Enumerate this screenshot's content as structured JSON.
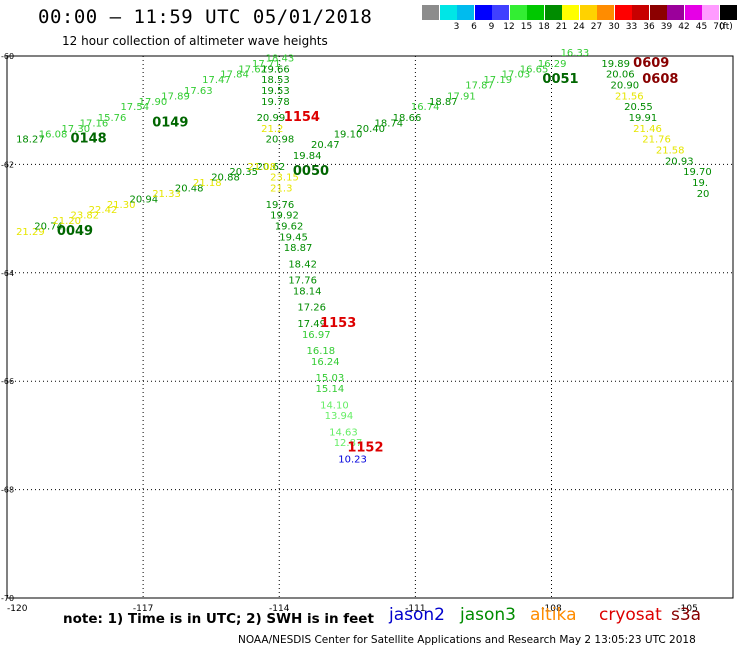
{
  "title": "00:00 – 11:59 UTC 05/01/2018",
  "subtitle": "12 hour collection of altimeter wave heights",
  "colorbar": {
    "unit_label": "(ft)",
    "levels": [
      {
        "label": "",
        "color": "#8c8c8c"
      },
      {
        "label": "3",
        "color": "#00e6e6"
      },
      {
        "label": "6",
        "color": "#00bbee"
      },
      {
        "label": "9",
        "color": "#0000ff"
      },
      {
        "label": "12",
        "color": "#4040ff"
      },
      {
        "label": "15",
        "color": "#33ee33"
      },
      {
        "label": "18",
        "color": "#00c800"
      },
      {
        "label": "21",
        "color": "#008c00"
      },
      {
        "label": "24",
        "color": "#ffff00"
      },
      {
        "label": "27",
        "color": "#ffd200"
      },
      {
        "label": "30",
        "color": "#ff8c00"
      },
      {
        "label": "33",
        "color": "#ff0000"
      },
      {
        "label": "36",
        "color": "#c80000"
      },
      {
        "label": "39",
        "color": "#8c0000"
      },
      {
        "label": "42",
        "color": "#9b009b"
      },
      {
        "label": "45",
        "color": "#e600e6"
      },
      {
        "label": "70",
        "color": "#ff9bff"
      },
      {
        "label": "",
        "color": "#000000"
      }
    ]
  },
  "map": {
    "lon_range": [
      -120,
      -104
    ],
    "lat_range": [
      -70,
      -60
    ],
    "lon_ticks": [
      "-120",
      "-117",
      "-114",
      "-111",
      "-108",
      "-105"
    ],
    "lat_ticks": [
      "-60",
      "-62",
      "-64",
      "-66",
      "-68",
      "-70"
    ]
  },
  "track_labels": [
    {
      "text": "0148",
      "lon": -118.6,
      "lat": -61.6,
      "color": "#006600",
      "bold": true
    },
    {
      "text": "0149",
      "lon": -116.8,
      "lat": -61.3,
      "color": "#006600",
      "bold": true
    },
    {
      "text": "0049",
      "lon": -118.9,
      "lat": -63.3,
      "color": "#006600",
      "bold": true
    },
    {
      "text": "0050",
      "lon": -113.7,
      "lat": -62.2,
      "color": "#006600",
      "bold": true
    },
    {
      "text": "0051",
      "lon": -108.2,
      "lat": -60.5,
      "color": "#006600",
      "bold": true
    },
    {
      "text": "0609",
      "lon": -106.2,
      "lat": -60.2,
      "color": "#880000",
      "bold": true
    },
    {
      "text": "0608",
      "lon": -106.0,
      "lat": -60.5,
      "color": "#880000",
      "bold": true
    },
    {
      "text": "1154",
      "lon": -113.9,
      "lat": -61.2,
      "color": "#dd0000",
      "bold": true
    },
    {
      "text": "1153",
      "lon": -113.1,
      "lat": -65.0,
      "color": "#dd0000",
      "bold": true
    },
    {
      "text": "1152",
      "lon": -112.5,
      "lat": -67.3,
      "color": "#dd0000",
      "bold": true
    }
  ],
  "swh_values": [
    {
      "text": "18.27",
      "lon": -119.8,
      "lat": -61.6,
      "color": "#008c00"
    },
    {
      "text": "16.08",
      "lon": -119.3,
      "lat": -61.5,
      "color": "#33cc33"
    },
    {
      "text": "17.30",
      "lon": -118.8,
      "lat": -61.4,
      "color": "#33cc33"
    },
    {
      "text": "17.16",
      "lon": -118.4,
      "lat": -61.3,
      "color": "#33cc33"
    },
    {
      "text": "15.76",
      "lon": -118.0,
      "lat": -61.2,
      "color": "#33cc33"
    },
    {
      "text": "17.54",
      "lon": -117.5,
      "lat": -61.0,
      "color": "#33cc33"
    },
    {
      "text": "17.90",
      "lon": -117.1,
      "lat": -60.9,
      "color": "#33cc33"
    },
    {
      "text": "17.89",
      "lon": -116.6,
      "lat": -60.8,
      "color": "#33cc33"
    },
    {
      "text": "17.63",
      "lon": -116.1,
      "lat": -60.7,
      "color": "#33cc33"
    },
    {
      "text": "17.47",
      "lon": -115.7,
      "lat": -60.5,
      "color": "#33cc33"
    },
    {
      "text": "17.84",
      "lon": -115.3,
      "lat": -60.4,
      "color": "#33cc33"
    },
    {
      "text": "17.62",
      "lon": -114.9,
      "lat": -60.3,
      "color": "#33cc33"
    },
    {
      "text": "17.71",
      "lon": -114.6,
      "lat": -60.2,
      "color": "#33cc33"
    },
    {
      "text": "18.43",
      "lon": -114.3,
      "lat": -60.1,
      "color": "#33cc33"
    },
    {
      "text": "19.66",
      "lon": -114.4,
      "lat": -60.3,
      "color": "#008c00"
    },
    {
      "text": "18.53",
      "lon": -114.4,
      "lat": -60.5,
      "color": "#008c00"
    },
    {
      "text": "19.53",
      "lon": -114.4,
      "lat": -60.7,
      "color": "#008c00"
    },
    {
      "text": "19.78",
      "lon": -114.4,
      "lat": -60.9,
      "color": "#008c00"
    },
    {
      "text": "20.99",
      "lon": -114.5,
      "lat": -61.2,
      "color": "#008c00"
    },
    {
      "text": "21.2",
      "lon": -114.4,
      "lat": -61.4,
      "color": "#e6e600"
    },
    {
      "text": "20.98",
      "lon": -114.3,
      "lat": -61.6,
      "color": "#008c00"
    },
    {
      "text": "20.62",
      "lon": -114.5,
      "lat": -62.1,
      "color": "#008c00"
    },
    {
      "text": "23.15",
      "lon": -114.2,
      "lat": -62.3,
      "color": "#e6e600"
    },
    {
      "text": "21.3",
      "lon": -114.2,
      "lat": -62.5,
      "color": "#e6e600"
    },
    {
      "text": "19.76",
      "lon": -114.3,
      "lat": -62.8,
      "color": "#008c00"
    },
    {
      "text": "19.92",
      "lon": -114.2,
      "lat": -63.0,
      "color": "#008c00"
    },
    {
      "text": "19.62",
      "lon": -114.1,
      "lat": -63.2,
      "color": "#008c00"
    },
    {
      "text": "19.45",
      "lon": -114.0,
      "lat": -63.4,
      "color": "#008c00"
    },
    {
      "text": "18.87",
      "lon": -113.9,
      "lat": -63.6,
      "color": "#008c00"
    },
    {
      "text": "18.42",
      "lon": -113.8,
      "lat": -63.9,
      "color": "#008c00"
    },
    {
      "text": "17.76",
      "lon": -113.8,
      "lat": -64.2,
      "color": "#008c00"
    },
    {
      "text": "18.14",
      "lon": -113.7,
      "lat": -64.4,
      "color": "#008c00"
    },
    {
      "text": "17.26",
      "lon": -113.6,
      "lat": -64.7,
      "color": "#008c00"
    },
    {
      "text": "17.49",
      "lon": -113.6,
      "lat": -65.0,
      "color": "#008c00"
    },
    {
      "text": "16.97",
      "lon": -113.5,
      "lat": -65.2,
      "color": "#33cc33"
    },
    {
      "text": "16.18",
      "lon": -113.4,
      "lat": -65.5,
      "color": "#33cc33"
    },
    {
      "text": "16.24",
      "lon": -113.3,
      "lat": -65.7,
      "color": "#33cc33"
    },
    {
      "text": "15.03",
      "lon": -113.2,
      "lat": -66.0,
      "color": "#33cc33"
    },
    {
      "text": "15.14",
      "lon": -113.2,
      "lat": -66.2,
      "color": "#33cc33"
    },
    {
      "text": "14.10",
      "lon": -113.1,
      "lat": -66.5,
      "color": "#66ee66"
    },
    {
      "text": "13.94",
      "lon": -113.0,
      "lat": -66.7,
      "color": "#66ee66"
    },
    {
      "text": "14.63",
      "lon": -112.9,
      "lat": -67.0,
      "color": "#66ee66"
    },
    {
      "text": "12.87",
      "lon": -112.8,
      "lat": -67.2,
      "color": "#66ee66"
    },
    {
      "text": "10.23",
      "lon": -112.7,
      "lat": -67.5,
      "color": "#0000dd"
    },
    {
      "text": "21.29",
      "lon": -119.8,
      "lat": -63.3,
      "color": "#e6e600"
    },
    {
      "text": "20.74",
      "lon": -119.4,
      "lat": -63.2,
      "color": "#008c00"
    },
    {
      "text": "21.20",
      "lon": -119.0,
      "lat": -63.1,
      "color": "#e6e600"
    },
    {
      "text": "23.82",
      "lon": -118.6,
      "lat": -63.0,
      "color": "#e6e600"
    },
    {
      "text": "22.42",
      "lon": -118.2,
      "lat": -62.9,
      "color": "#e6e600"
    },
    {
      "text": "21.30",
      "lon": -117.8,
      "lat": -62.8,
      "color": "#e6e600"
    },
    {
      "text": "20.94",
      "lon": -117.3,
      "lat": -62.7,
      "color": "#008c00"
    },
    {
      "text": "21.33",
      "lon": -116.8,
      "lat": -62.6,
      "color": "#e6e600"
    },
    {
      "text": "20.48",
      "lon": -116.3,
      "lat": -62.5,
      "color": "#008c00"
    },
    {
      "text": "21.18",
      "lon": -115.9,
      "lat": -62.4,
      "color": "#e6e600"
    },
    {
      "text": "20.88",
      "lon": -115.5,
      "lat": -62.3,
      "color": "#008c00"
    },
    {
      "text": "20.35",
      "lon": -115.1,
      "lat": -62.2,
      "color": "#008c00"
    },
    {
      "text": "21.08",
      "lon": -114.7,
      "lat": -62.1,
      "color": "#e6e600"
    },
    {
      "text": "19.84",
      "lon": -113.7,
      "lat": -61.9,
      "color": "#008c00"
    },
    {
      "text": "20.47",
      "lon": -113.3,
      "lat": -61.7,
      "color": "#008c00"
    },
    {
      "text": "19.10",
      "lon": -112.8,
      "lat": -61.5,
      "color": "#008c00"
    },
    {
      "text": "20.40",
      "lon": -112.3,
      "lat": -61.4,
      "color": "#008c00"
    },
    {
      "text": "18.74",
      "lon": -111.9,
      "lat": -61.3,
      "color": "#008c00"
    },
    {
      "text": "18.66",
      "lon": -111.5,
      "lat": -61.2,
      "color": "#008c00"
    },
    {
      "text": "16.74",
      "lon": -111.1,
      "lat": -61.0,
      "color": "#33cc33"
    },
    {
      "text": "18.87",
      "lon": -110.7,
      "lat": -60.9,
      "color": "#008c00"
    },
    {
      "text": "17.91",
      "lon": -110.3,
      "lat": -60.8,
      "color": "#33cc33"
    },
    {
      "text": "17.87",
      "lon": -109.9,
      "lat": -60.6,
      "color": "#33cc33"
    },
    {
      "text": "17.19",
      "lon": -109.5,
      "lat": -60.5,
      "color": "#33cc33"
    },
    {
      "text": "17.03",
      "lon": -109.1,
      "lat": -60.4,
      "color": "#33cc33"
    },
    {
      "text": "16.65",
      "lon": -108.7,
      "lat": -60.3,
      "color": "#33cc33"
    },
    {
      "text": "16.29",
      "lon": -108.3,
      "lat": -60.2,
      "color": "#33cc33"
    },
    {
      "text": "16.33",
      "lon": -107.8,
      "lat": -60.0,
      "color": "#33cc33"
    },
    {
      "text": "19.89",
      "lon": -106.9,
      "lat": -60.2,
      "color": "#008c00"
    },
    {
      "text": "20.06",
      "lon": -106.8,
      "lat": -60.4,
      "color": "#008c00"
    },
    {
      "text": "20.90",
      "lon": -106.7,
      "lat": -60.6,
      "color": "#008c00"
    },
    {
      "text": "21.56",
      "lon": -106.6,
      "lat": -60.8,
      "color": "#e6e600"
    },
    {
      "text": "20.55",
      "lon": -106.4,
      "lat": -61.0,
      "color": "#008c00"
    },
    {
      "text": "19.91",
      "lon": -106.3,
      "lat": -61.2,
      "color": "#008c00"
    },
    {
      "text": "21.46",
      "lon": -106.2,
      "lat": -61.4,
      "color": "#e6e600"
    },
    {
      "text": "21.76",
      "lon": -106.0,
      "lat": -61.6,
      "color": "#e6e600"
    },
    {
      "text": "21.58",
      "lon": -105.7,
      "lat": -61.8,
      "color": "#e6e600"
    },
    {
      "text": "20.93",
      "lon": -105.5,
      "lat": -62.0,
      "color": "#008c00"
    },
    {
      "text": "19.70",
      "lon": -105.1,
      "lat": -62.2,
      "color": "#008c00"
    },
    {
      "text": "19.",
      "lon": -104.9,
      "lat": -62.4,
      "color": "#008c00"
    },
    {
      "text": "20",
      "lon": -104.8,
      "lat": -62.6,
      "color": "#008c00"
    }
  ],
  "note_text": "note:  1) Time is in UTC;  2) SWH is in feet",
  "legend": [
    {
      "name": "jason2",
      "color": "#0000cc"
    },
    {
      "name": "jason3",
      "color": "#008c00"
    },
    {
      "name": "altika",
      "color": "#ff8c00"
    },
    {
      "name": "cryosat",
      "color": "#dd0000"
    },
    {
      "name": "s3a",
      "color": "#880000"
    }
  ],
  "footer": "NOAA/NESDIS Center for Satellite Applications and Research    May  2 13:05:23 UTC 2018"
}
